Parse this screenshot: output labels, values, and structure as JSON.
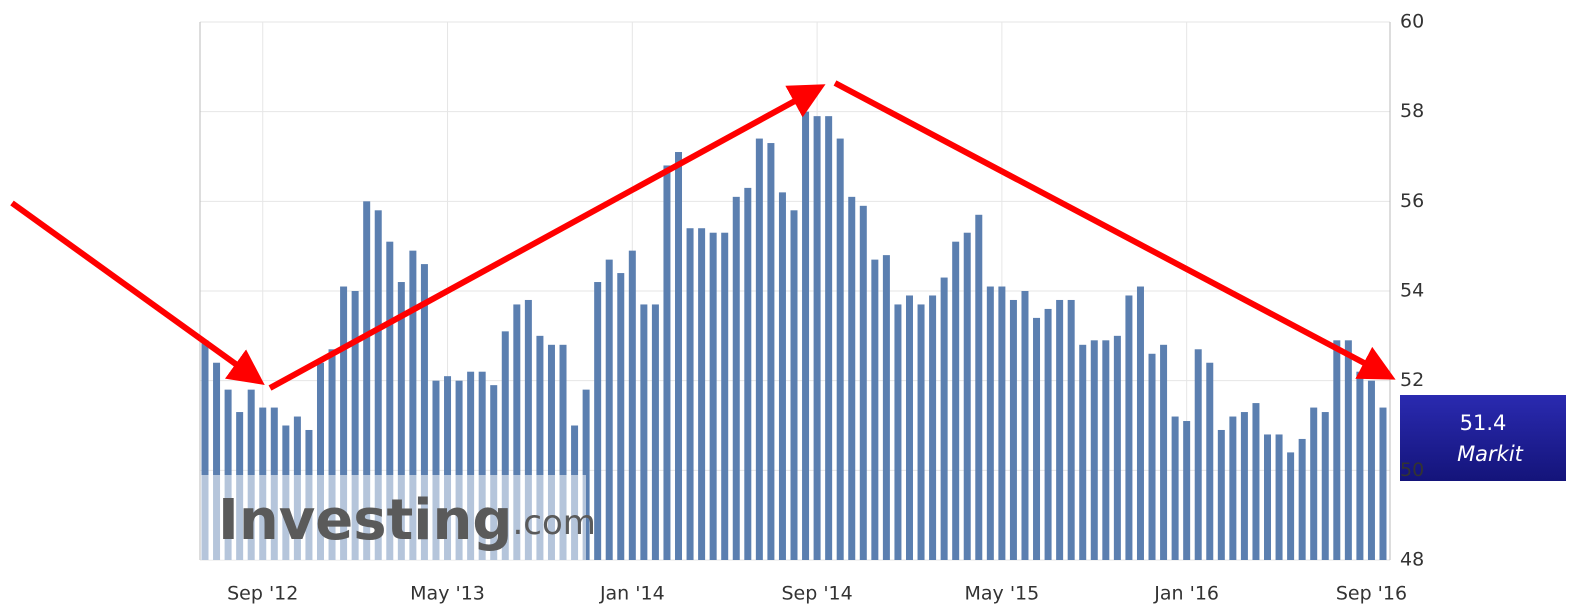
{
  "chart_data": {
    "type": "bar",
    "categories": [
      null,
      null,
      null,
      null,
      null,
      "Sep '12",
      null,
      null,
      null,
      null,
      null,
      null,
      null,
      null,
      null,
      null,
      null,
      null,
      null,
      null,
      null,
      "May '13",
      null,
      null,
      null,
      null,
      null,
      null,
      null,
      null,
      null,
      null,
      null,
      null,
      null,
      null,
      null,
      "Jan '14",
      null,
      null,
      null,
      null,
      null,
      null,
      null,
      null,
      null,
      null,
      null,
      null,
      null,
      null,
      null,
      "Sep '14",
      null,
      null,
      null,
      null,
      null,
      null,
      null,
      null,
      null,
      null,
      null,
      null,
      null,
      null,
      null,
      "May '15",
      null,
      null,
      null,
      null,
      null,
      null,
      null,
      null,
      null,
      null,
      null,
      null,
      null,
      null,
      null,
      "Jan '16",
      null,
      null,
      null,
      null,
      null,
      null,
      null,
      null,
      null,
      null,
      null,
      null,
      null,
      null,
      null,
      "Sep '16",
      null
    ],
    "values": [
      52.9,
      52.4,
      51.8,
      51.3,
      51.8,
      51.4,
      51.4,
      51.0,
      51.2,
      50.9,
      52.4,
      52.7,
      54.1,
      54.0,
      56.0,
      55.8,
      55.1,
      54.2,
      54.9,
      54.6,
      52.0,
      52.1,
      52.0,
      52.2,
      52.2,
      51.9,
      53.1,
      53.7,
      53.8,
      53.0,
      52.8,
      52.8,
      51.0,
      51.8,
      54.2,
      54.7,
      54.4,
      54.9,
      53.7,
      53.7,
      56.8,
      57.1,
      55.4,
      55.4,
      55.3,
      55.3,
      56.1,
      56.3,
      57.4,
      57.3,
      56.2,
      55.8,
      58.0,
      57.9,
      57.9,
      57.4,
      56.1,
      55.9,
      54.7,
      54.8,
      53.7,
      53.9,
      53.7,
      53.9,
      54.3,
      55.1,
      55.3,
      55.7,
      54.1,
      54.1,
      53.8,
      54.0,
      53.4,
      53.6,
      53.8,
      53.8,
      52.8,
      52.9,
      52.9,
      53.0,
      53.9,
      54.1,
      52.6,
      52.8,
      51.2,
      51.1,
      52.7,
      52.4,
      50.9,
      51.2,
      51.3,
      51.5,
      50.8,
      50.8,
      50.4,
      50.7,
      51.4,
      51.3,
      52.9,
      52.9,
      52.2,
      52.0,
      51.4
    ],
    "color": "#5b7fb0",
    "ylim": [
      48,
      60
    ],
    "yticks": [
      48,
      50,
      52,
      54,
      56,
      58,
      60
    ],
    "grid": true,
    "series_name": "Markit",
    "watermark": [
      "Investing",
      ".com"
    ]
  }
}
